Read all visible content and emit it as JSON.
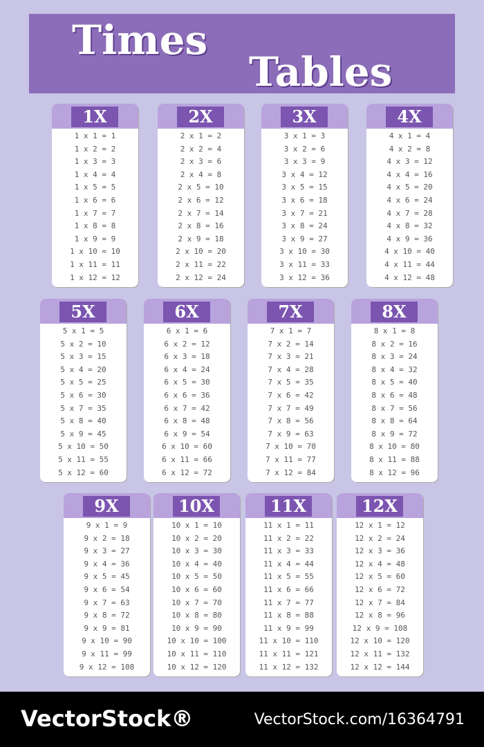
{
  "header": {
    "title_line1": "Times",
    "title_line2": "Tables"
  },
  "tables": [
    {
      "label": "1X",
      "rows": [
        "1 x 1 = 1",
        "1 x 2 = 2",
        "1 x 3 = 3",
        "1 x 4 = 4",
        "1 x 5 = 5",
        "1 x 6 = 6",
        "1 x 7 = 7",
        "1 x 8 = 8",
        "1 x 9 = 9",
        "1 x 10 = 10",
        "1 x 11 = 11",
        "1 x 12 = 12"
      ]
    },
    {
      "label": "2X",
      "rows": [
        "2 x 1 = 2",
        "2 x 2 = 4",
        "2 x 3 = 6",
        "2 x 4 = 8",
        "2 x 5 = 10",
        "2 x 6 = 12",
        "2 x 7 = 14",
        "2 x 8 = 16",
        "2 x 9 = 18",
        "2 x 10 = 20",
        "2 x 11 = 22",
        "2 x 12 = 24"
      ]
    },
    {
      "label": "3X",
      "rows": [
        "3 x 1 = 3",
        "3 x 2 = 6",
        "3 x 3 = 9",
        "3 x 4 = 12",
        "3 x 5 = 15",
        "3 x 6 = 18",
        "3 x 7 = 21",
        "3 x 8 = 24",
        "3 x 9 = 27",
        "3 x 10 = 30",
        "3 x 11 = 33",
        "3 x 12 = 36"
      ]
    },
    {
      "label": "4X",
      "rows": [
        "4 x 1 = 4",
        "4 x 2 = 8",
        "4 x 3 = 12",
        "4 x 4 = 16",
        "4 x 5 = 20",
        "4 x 6 = 24",
        "4 x 7 = 28",
        "4 x 8 = 32",
        "4 x 9 = 36",
        "4 x 10 = 40",
        "4 x 11 = 44",
        "4 x 12 = 48"
      ]
    },
    {
      "label": "5X",
      "rows": [
        "5 x 1 = 5",
        "5 x 2 = 10",
        "5 x 3 = 15",
        "5 x 4 = 20",
        "5 x 5 = 25",
        "5 x 6 = 30",
        "5 x 7 = 35",
        "5 x 8 = 40",
        "5 x 9 = 45",
        "5 x 10 = 50",
        "5 x 11 = 55",
        "5 x 12 = 60"
      ]
    },
    {
      "label": "6X",
      "rows": [
        "6 x 1 = 6",
        "6 x 2 = 12",
        "6 x 3 = 18",
        "6 x 4 = 24",
        "6 x 5 = 30",
        "6 x 6 = 36",
        "6 x 7 = 42",
        "6 x 8 = 48",
        "6 x 9 = 54",
        "6 x 10 = 60",
        "6 x 11 = 66",
        "6 x 12 = 72"
      ]
    },
    {
      "label": "7X",
      "rows": [
        "7 x 1 = 7",
        "7 x 2 = 14",
        "7 x 3 = 21",
        "7 x 4 = 28",
        "7 x 5 = 35",
        "7 x 6 = 42",
        "7 x 7 = 49",
        "7 x 8 = 56",
        "7 x 9 = 63",
        "7 x 10 = 70",
        "7 x 11 = 77",
        "7 x 12 = 84"
      ]
    },
    {
      "label": "8X",
      "rows": [
        "8 x 1 = 8",
        "8 x 2 = 16",
        "8 x 3 = 24",
        "8 x 4 = 32",
        "8 x 5 = 40",
        "8 x 6 = 48",
        "8 x 7 = 56",
        "8 x 8 = 64",
        "8 x 9 = 72",
        "8 x 10 = 80",
        "8 x 11 = 88",
        "8 x 12 = 96"
      ]
    },
    {
      "label": "9X",
      "rows": [
        "9 x 1 = 9",
        "9 x 2 = 18",
        "9 x 3 = 27",
        "9 x 4 = 36",
        "9 x 5 = 45",
        "9 x 6 = 54",
        "9 x 7 = 63",
        "9 x 8 = 72",
        "9 x 9 = 81",
        "9 x 10 = 90",
        "9 x 11 = 99",
        "9 x 12 = 108"
      ]
    },
    {
      "label": "10X",
      "rows": [
        "10 x 1 = 10",
        "10 x 2 = 20",
        "10 x 3 = 30",
        "10 x 4 = 40",
        "10 x 5 = 50",
        "10 x 6 = 60",
        "10 x 7 = 70",
        "10 x 8 = 80",
        "10 x 9 = 90",
        "10 x 10 = 100",
        "10 x 11 = 110",
        "10 x 12 = 120"
      ]
    },
    {
      "label": "11X",
      "rows": [
        "11 x 1 = 11",
        "11 x 2 = 22",
        "11 x 3 = 33",
        "11 x 4 = 44",
        "11 x 5 = 55",
        "11 x 6 = 66",
        "11 x 7 = 77",
        "11 x 8 = 88",
        "11 x 9 = 99",
        "11 x 10 = 110",
        "11 x 11 = 121",
        "11 x 12 = 132"
      ]
    },
    {
      "label": "12X",
      "rows": [
        "12 x 1 = 12",
        "12 x 2 = 24",
        "12 x 3 = 36",
        "12 x 4 = 48",
        "12 x 5 = 60",
        "12 x 6 = 72",
        "12 x 7 = 84",
        "12 x 8 = 96",
        "12 x 9 = 108",
        "12 x 10 = 120",
        "12 x 11 = 132",
        "12 x 12 = 144"
      ]
    }
  ],
  "footer": {
    "brand": "VectorStock®",
    "url": "VectorStock.com/16364791"
  }
}
